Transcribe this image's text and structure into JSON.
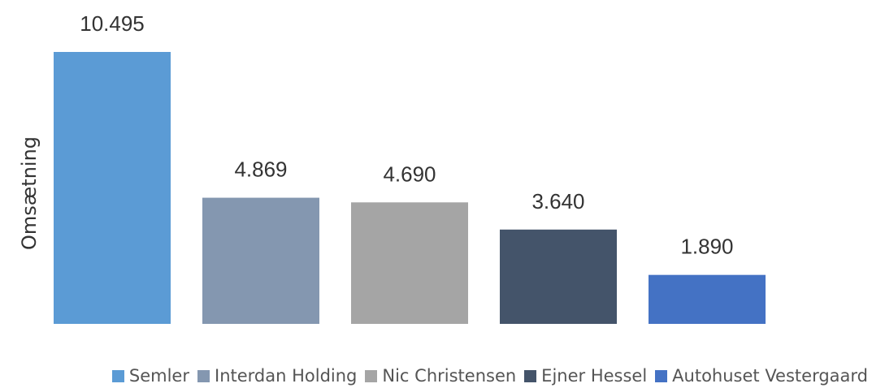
{
  "chart_data": {
    "type": "bar",
    "y_label": "Omsætning",
    "series": [
      {
        "name": "Semler",
        "color": "#5b9bd5",
        "values": [
          10495
        ],
        "value_labels": [
          "10.495"
        ]
      },
      {
        "name": "Interdan Holding",
        "color": "#8497b0",
        "values": [
          4869
        ],
        "value_labels": [
          "4.869"
        ]
      },
      {
        "name": "Nic Christensen",
        "color": "#a5a5a5",
        "values": [
          4690
        ],
        "value_labels": [
          "4.690"
        ]
      },
      {
        "name": "Ejner Hessel",
        "color": "#44546a",
        "values": [
          3640
        ],
        "value_labels": [
          "3.640"
        ]
      },
      {
        "name": "Autohuset Vestergaard",
        "color": "#4472c4",
        "values": [
          1890
        ],
        "value_labels": [
          "1.890"
        ]
      }
    ]
  }
}
